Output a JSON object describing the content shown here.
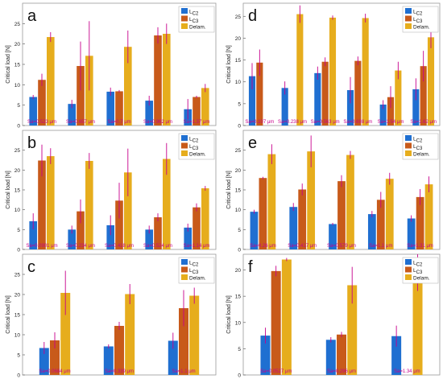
{
  "colors": {
    "Lc2": "#1f6fd1",
    "Lc3": "#c85a1a",
    "Delam": "#e6ad1d",
    "error_bar": "#c7008c",
    "label": "#c7008c",
    "axis": "#333333"
  },
  "chart_data": [
    {
      "panel": "a",
      "type": "bar",
      "ylabel": "Critical load [N]",
      "ylim": [
        0,
        30
      ],
      "yticks": [
        0,
        5,
        10,
        15,
        20,
        25
      ],
      "legend": [
        "LC2",
        "LC3",
        "Delam."
      ],
      "legend_position": "top-right",
      "categories": [
        "Sa=0.523 μm",
        "Sa=0.657 μm",
        "Sa=0.7 μm",
        "Sa=0.962 μm",
        "Sa=1.37 μm"
      ],
      "series": [
        {
          "name": "LC2",
          "values": [
            7,
            5.3,
            8.3,
            6.1,
            4.0
          ],
          "errors": [
            0.5,
            1.0,
            1.0,
            1.2,
            2.5
          ]
        },
        {
          "name": "LC3",
          "values": [
            11.2,
            14.6,
            8.4,
            22.1,
            7.0
          ],
          "errors": [
            1.5,
            6.0,
            0.3,
            2.0,
            0.3
          ]
        },
        {
          "name": "Delam.",
          "values": [
            21.7,
            17.1,
            19.3,
            22.5,
            9.2
          ],
          "errors": [
            1.2,
            8.5,
            4.0,
            2.5,
            1.0
          ]
        }
      ]
    },
    {
      "panel": "b",
      "type": "bar",
      "ylabel": "Critical load [N]",
      "ylim": [
        0,
        30
      ],
      "yticks": [
        0,
        5,
        10,
        15,
        20,
        25
      ],
      "legend": [
        "LC2",
        "LC3",
        "Delam."
      ],
      "legend_position": "top-right",
      "categories": [
        "Sa=0.0901 μm",
        "Sa=0.234 μm",
        "Sa=0.418 μm",
        "Sa=0.524 μm",
        "Sa=1.14 μm"
      ],
      "series": [
        {
          "name": "LC2",
          "values": [
            7.1,
            5.0,
            6.1,
            5.0,
            5.5
          ],
          "errors": [
            2.0,
            1.0,
            2.5,
            1.0,
            1.0
          ]
        },
        {
          "name": "LC3",
          "values": [
            22.4,
            9.6,
            12.3,
            8.1,
            10.6
          ],
          "errors": [
            4.0,
            3.0,
            4.5,
            1.0,
            1.0
          ]
        },
        {
          "name": "Delam.",
          "values": [
            23.5,
            22.3,
            19.4,
            22.8,
            15.4
          ],
          "errors": [
            2.0,
            2.0,
            6.0,
            4.0,
            0.6
          ]
        }
      ]
    },
    {
      "panel": "c",
      "type": "bar",
      "ylabel": "Critical load [N]",
      "ylim": [
        0,
        30
      ],
      "yticks": [
        0,
        5,
        10,
        15,
        20,
        25
      ],
      "legend": [
        "LC2",
        "LC3",
        "Delam."
      ],
      "legend_position": "top-right",
      "categories": [
        "Sa=0.0684 μm",
        "Sa=0.339 μm",
        "Sa=1.1 μm"
      ],
      "series": [
        {
          "name": "LC2",
          "values": [
            6.7,
            7.1,
            8.5
          ],
          "errors": [
            1.5,
            0.5,
            2.0
          ]
        },
        {
          "name": "LC3",
          "values": [
            8.6,
            12.2,
            16.6
          ],
          "errors": [
            2.0,
            1.0,
            4.5
          ]
        },
        {
          "name": "Delam.",
          "values": [
            20.4,
            20.1,
            19.7
          ],
          "errors": [
            5.5,
            2.5,
            2.0
          ]
        }
      ]
    },
    {
      "panel": "d",
      "type": "bar",
      "ylabel": "Critical load [N]",
      "ylim": [
        0,
        28
      ],
      "yticks": [
        0,
        5,
        10,
        15,
        20,
        25
      ],
      "legend": [
        "LC2",
        "LC3",
        "Delam."
      ],
      "legend_position": "top-right",
      "categories": [
        "Sa=0.107 μm",
        "Sa=0.238 μm",
        "Sa=0.563 μm",
        "Sa=0.698 μm",
        "Sa=1.54 μm",
        "Sa=1.62 μm"
      ],
      "series": [
        {
          "name": "LC2",
          "values": [
            11.3,
            8.6,
            12.0,
            8.1,
            4.8,
            8.3
          ],
          "errors": [
            3.0,
            1.5,
            1.5,
            3.0,
            1.0,
            2.5
          ]
        },
        {
          "name": "LC3",
          "values": [
            14.4,
            0,
            14.6,
            14.8,
            6.5,
            13.6
          ],
          "errors": [
            3.0,
            0,
            1.0,
            1.0,
            2.5,
            3.5
          ]
        },
        {
          "name": "Delam.",
          "values": [
            0,
            25.5,
            24.7,
            24.6,
            12.6,
            20.2
          ],
          "errors": [
            0,
            2.0,
            0.5,
            1.0,
            2.0,
            2.5
          ]
        }
      ]
    },
    {
      "panel": "e",
      "type": "bar",
      "ylabel": "Critical load [N]",
      "ylim": [
        0,
        30
      ],
      "yticks": [
        0,
        5,
        10,
        15,
        20,
        25
      ],
      "legend": [
        "LC2",
        "LC3",
        "Delam."
      ],
      "legend_position": "top-right",
      "categories": [
        "Sa=0.26 μm",
        "Sa=0.417 μm",
        "Sa=0.579 μm",
        "Sa=1.1 μm",
        "Sa=1.31 μm"
      ],
      "series": [
        {
          "name": "LC2",
          "values": [
            9.5,
            10.7,
            6.4,
            8.9,
            7.8
          ],
          "errors": [
            0.5,
            1.0,
            0.3,
            0.8,
            0.8
          ]
        },
        {
          "name": "LC3",
          "values": [
            18.0,
            15.1,
            17.2,
            12.5,
            13.2
          ],
          "errors": [
            0.3,
            1.5,
            1.5,
            2.0,
            2.0
          ]
        },
        {
          "name": "Delam.",
          "values": [
            24.0,
            24.7,
            23.8,
            17.8,
            16.4
          ],
          "errors": [
            2.5,
            4.0,
            1.0,
            1.5,
            2.0
          ]
        }
      ]
    },
    {
      "panel": "f",
      "type": "bar",
      "ylabel": "Critical load [N]",
      "ylim": [
        0,
        23
      ],
      "yticks": [
        0,
        5,
        10,
        15,
        20
      ],
      "legend": [
        "LC2",
        "LC3",
        "Delam."
      ],
      "legend_position": "top-right",
      "categories": [
        "Sa=0.0527 μm",
        "Sa=0.296 μm",
        "Sa=1.34 μm"
      ],
      "series": [
        {
          "name": "LC2",
          "values": [
            7.5,
            6.7,
            7.4
          ],
          "errors": [
            1.5,
            0.5,
            2.0
          ]
        },
        {
          "name": "LC3",
          "values": [
            19.8,
            7.7,
            0
          ],
          "errors": [
            1.0,
            0.5,
            0
          ]
        },
        {
          "name": "Delam.",
          "values": [
            22.0,
            17.1,
            19.5
          ],
          "errors": [
            0.3,
            3.5,
            3.5
          ]
        }
      ]
    }
  ]
}
